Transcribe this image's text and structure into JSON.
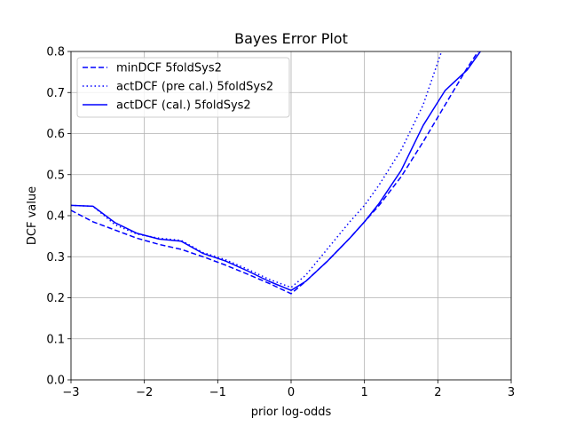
{
  "chart_data": {
    "type": "line",
    "title": "Bayes Error Plot",
    "xlabel": "prior log-odds",
    "ylabel": "DCF value",
    "xlim": [
      -3,
      3
    ],
    "ylim": [
      0.0,
      0.8
    ],
    "xticks": [
      -3,
      -2,
      -1,
      0,
      1,
      2,
      3
    ],
    "xtick_labels": [
      "−3",
      "−2",
      "−1",
      "0",
      "1",
      "2",
      "3"
    ],
    "yticks": [
      0.0,
      0.1,
      0.2,
      0.3,
      0.4,
      0.5,
      0.6,
      0.7,
      0.8
    ],
    "ytick_labels": [
      "0.0",
      "0.1",
      "0.2",
      "0.3",
      "0.4",
      "0.5",
      "0.6",
      "0.7",
      "0.8"
    ],
    "grid": true,
    "legend_position": "top-left",
    "line_color": "#0000ff",
    "series": [
      {
        "name": "minDCF 5foldSys2",
        "linestyle": "dashed",
        "x": [
          -3.0,
          -2.7,
          -2.4,
          -2.1,
          -1.8,
          -1.5,
          -1.2,
          -0.9,
          -0.6,
          -0.3,
          0.0,
          0.2,
          0.5,
          0.8,
          1.0,
          1.2,
          1.5,
          1.8,
          2.1,
          2.4,
          2.7
        ],
        "y": [
          0.413,
          0.385,
          0.365,
          0.345,
          0.33,
          0.318,
          0.3,
          0.28,
          0.258,
          0.235,
          0.21,
          0.24,
          0.29,
          0.345,
          0.385,
          0.425,
          0.495,
          0.58,
          0.67,
          0.76,
          0.84
        ]
      },
      {
        "name": "actDCF (pre cal.) 5foldSys2",
        "linestyle": "dotted",
        "x": [
          -3.0,
          -2.7,
          -2.4,
          -2.1,
          -1.8,
          -1.5,
          -1.2,
          -0.9,
          -0.6,
          -0.3,
          0.0,
          0.2,
          0.5,
          0.8,
          1.0,
          1.2,
          1.5,
          1.8,
          2.05
        ],
        "y": [
          0.425,
          0.423,
          0.378,
          0.355,
          0.345,
          0.34,
          0.31,
          0.293,
          0.27,
          0.245,
          0.225,
          0.255,
          0.32,
          0.385,
          0.425,
          0.475,
          0.56,
          0.67,
          0.8
        ]
      },
      {
        "name": "actDCF (cal.) 5foldSys2",
        "linestyle": "solid",
        "x": [
          -3.0,
          -2.7,
          -2.4,
          -2.1,
          -1.8,
          -1.5,
          -1.2,
          -0.9,
          -0.6,
          -0.3,
          0.0,
          0.2,
          0.5,
          0.8,
          1.0,
          1.2,
          1.5,
          1.8,
          2.1,
          2.4,
          2.6
        ],
        "y": [
          0.425,
          0.423,
          0.383,
          0.357,
          0.343,
          0.338,
          0.308,
          0.29,
          0.266,
          0.24,
          0.218,
          0.24,
          0.29,
          0.345,
          0.385,
          0.43,
          0.51,
          0.62,
          0.705,
          0.755,
          0.805
        ]
      }
    ]
  }
}
